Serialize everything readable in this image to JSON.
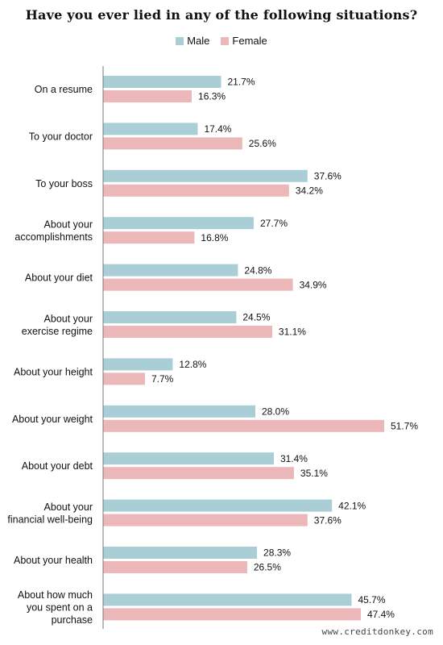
{
  "colors": {
    "male": "#a9ced6",
    "female": "#ebb7b8",
    "axis": "#777777"
  },
  "source": "www.creditdonkey.com",
  "chart_data": {
    "type": "bar",
    "orientation": "horizontal",
    "title": "Have you ever lied in any of the following situations?",
    "legend_position": "top-center",
    "grid": false,
    "xlim": [
      0,
      55
    ],
    "categories": [
      [
        "On a resume"
      ],
      [
        "To your doctor"
      ],
      [
        "To your boss"
      ],
      [
        "About your",
        "accomplishments"
      ],
      [
        "About your diet"
      ],
      [
        "About your",
        "exercise regime"
      ],
      [
        "About your height"
      ],
      [
        "About your weight"
      ],
      [
        "About your debt"
      ],
      [
        "About your",
        "financial well-being"
      ],
      [
        "About your health"
      ],
      [
        "About how much",
        "you spent on a",
        "purchase"
      ]
    ],
    "series": [
      {
        "name": "Male",
        "values": [
          21.7,
          17.4,
          37.6,
          27.7,
          24.8,
          24.5,
          12.8,
          28.0,
          31.4,
          42.1,
          28.3,
          45.7
        ],
        "labels": [
          "21.7%",
          "17.4%",
          "37.6%",
          "27.7%",
          "24.8%",
          "24.5%",
          "12.8%",
          "28.0%",
          "31.4%",
          "42.1%",
          "28.3%",
          "45.7%"
        ]
      },
      {
        "name": "Female",
        "values": [
          16.3,
          25.6,
          34.2,
          16.8,
          34.9,
          31.1,
          7.7,
          51.7,
          35.1,
          37.6,
          26.5,
          47.4
        ],
        "labels": [
          "16.3%",
          "25.6%",
          "34.2%",
          "16.8%",
          "34.9%",
          "31.1%",
          "7.7%",
          "51.7%",
          "35.1%",
          "37.6%",
          "26.5%",
          "47.4%"
        ]
      }
    ]
  }
}
